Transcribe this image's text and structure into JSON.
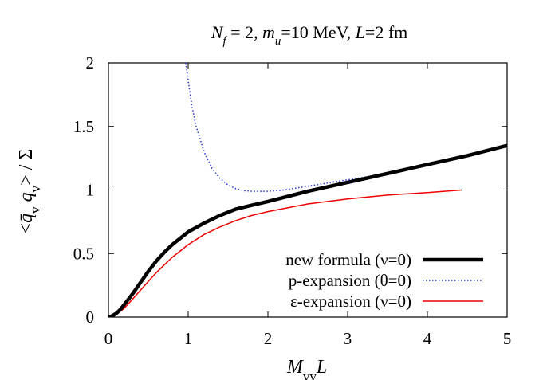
{
  "chart_data": {
    "type": "line",
    "title": {
      "parts": [
        {
          "text": "N",
          "italic": true
        },
        {
          "text": "f",
          "italic": true,
          "sub": true
        },
        {
          "text": " = 2, "
        },
        {
          "text": "m",
          "italic": true
        },
        {
          "text": "u",
          "italic": true,
          "sub": true
        },
        {
          "text": "=10 MeV, "
        },
        {
          "text": "L",
          "italic": true
        },
        {
          "text": "=2 fm"
        }
      ]
    },
    "xlabel": {
      "parts": [
        {
          "text": "M",
          "italic": true
        },
        {
          "text": "vv",
          "sub": true
        },
        {
          "text": "L",
          "italic": true
        }
      ]
    },
    "ylabel": {
      "parts": [
        {
          "text": "<"
        },
        {
          "text": "q̄",
          "italic": true
        },
        {
          "text": "v",
          "sub": true
        },
        {
          "text": " "
        },
        {
          "text": "q",
          "italic": true
        },
        {
          "text": "v",
          "sub": true
        },
        {
          "text": "> / Σ"
        }
      ]
    },
    "xlim": [
      0,
      5
    ],
    "ylim": [
      0,
      2
    ],
    "x_ticks": [
      "0",
      "1",
      "2",
      "3",
      "4",
      "5"
    ],
    "y_ticks": [
      "0",
      "0.5",
      "1",
      "1.5",
      "2"
    ],
    "legend_position": "bottom-right",
    "series": [
      {
        "name": "new formula (ν=0)",
        "color": "#000000",
        "style": "solid-thick",
        "x": [
          0,
          0.05,
          0.1,
          0.15,
          0.2,
          0.3,
          0.4,
          0.5,
          0.6,
          0.7,
          0.8,
          0.9,
          1.0,
          1.2,
          1.4,
          1.6,
          1.8,
          2.0,
          2.5,
          3.0,
          3.5,
          4.0,
          4.5,
          5.0
        ],
        "values": [
          0,
          0.01,
          0.03,
          0.06,
          0.1,
          0.18,
          0.27,
          0.36,
          0.44,
          0.51,
          0.57,
          0.62,
          0.67,
          0.74,
          0.8,
          0.85,
          0.88,
          0.91,
          0.99,
          1.06,
          1.13,
          1.2,
          1.27,
          1.35
        ]
      },
      {
        "name": "p-expansion (θ=0)",
        "color": "#2233cc",
        "style": "dotted",
        "x": [
          0.97,
          1.0,
          1.05,
          1.1,
          1.2,
          1.3,
          1.4,
          1.5,
          1.6,
          1.7,
          1.8,
          1.9,
          2.0,
          2.2,
          2.5,
          3.0,
          3.5,
          4.0,
          4.5,
          5.0
        ],
        "values": [
          2.0,
          1.86,
          1.65,
          1.5,
          1.3,
          1.17,
          1.09,
          1.04,
          1.01,
          0.995,
          0.99,
          0.99,
          0.99,
          1.0,
          1.03,
          1.08,
          1.13,
          1.2,
          1.27,
          1.35
        ]
      },
      {
        "name": "ε-expansion (ν=0)",
        "color": "#ee0000",
        "style": "solid",
        "x": [
          0,
          0.1,
          0.2,
          0.3,
          0.4,
          0.5,
          0.6,
          0.7,
          0.8,
          0.9,
          1.0,
          1.2,
          1.4,
          1.6,
          1.8,
          2.0,
          2.5,
          3.0,
          3.5,
          4.0,
          4.43
        ],
        "values": [
          0,
          0.02,
          0.07,
          0.14,
          0.21,
          0.28,
          0.35,
          0.41,
          0.47,
          0.52,
          0.57,
          0.65,
          0.71,
          0.76,
          0.8,
          0.83,
          0.89,
          0.93,
          0.96,
          0.98,
          1.0
        ]
      }
    ]
  }
}
